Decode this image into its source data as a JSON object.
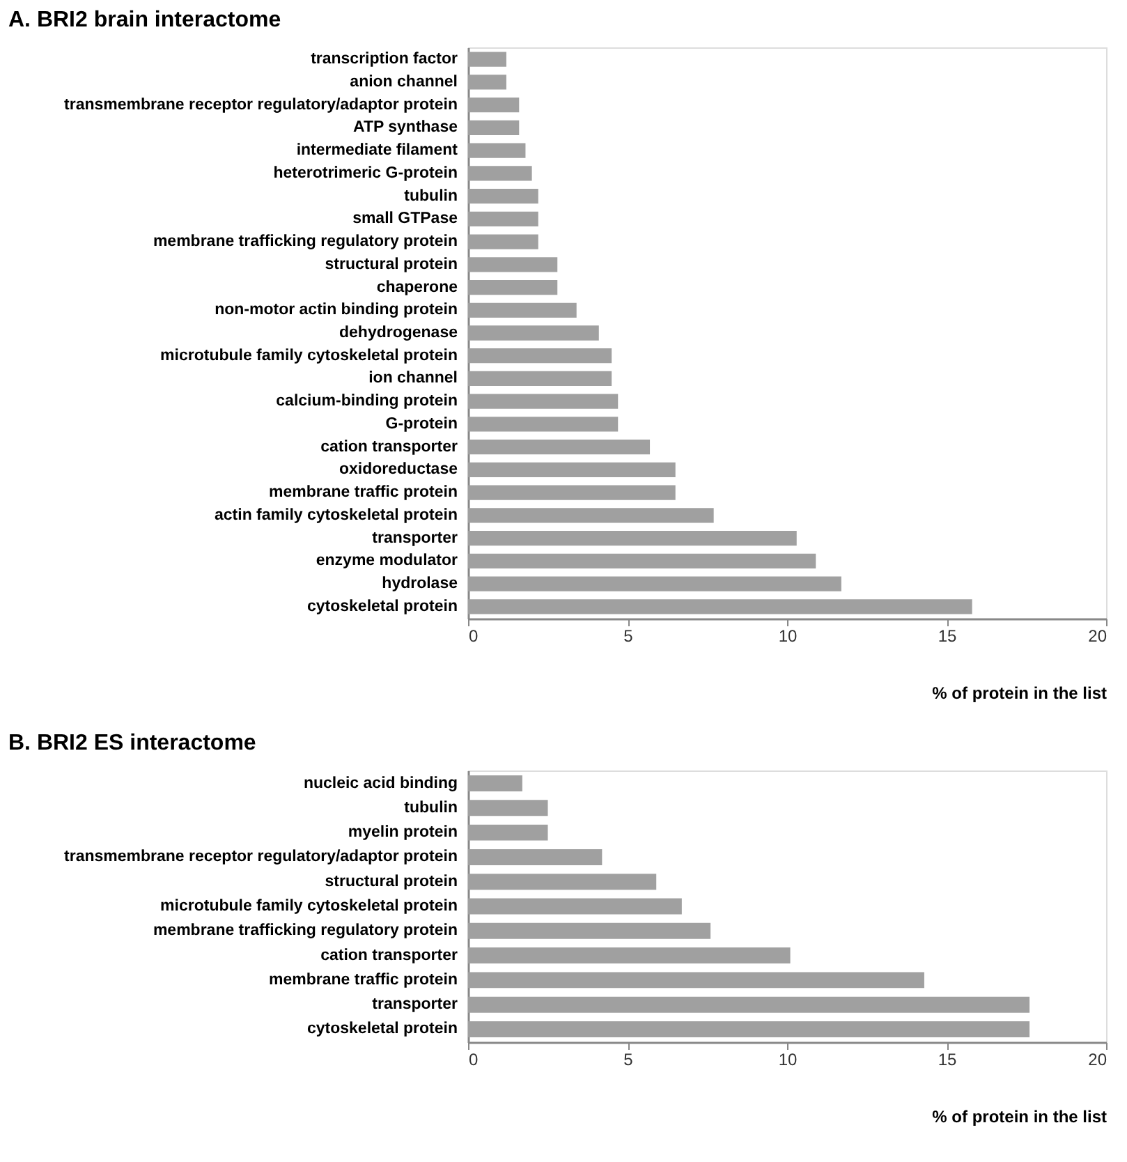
{
  "chart_data": [
    {
      "type": "bar",
      "orientation": "horizontal",
      "title": "A. BRI2 brain interactome",
      "xlabel": "% of protein in the list",
      "categories": [
        "transcription factor",
        "anion channel",
        "transmembrane receptor regulatory/adaptor protein",
        "ATP synthase",
        "intermediate filament",
        "heterotrimeric G-protein",
        "tubulin",
        "small GTPase",
        "membrane trafficking regulatory protein",
        "structural protein",
        "chaperone",
        "non-motor actin binding protein",
        "dehydrogenase",
        "microtubule family cytoskeletal protein",
        "ion channel",
        "calcium-binding protein",
        "G-protein",
        "cation transporter",
        "oxidoreductase",
        "membrane traffic protein",
        "actin family cytoskeletal protein",
        "transporter",
        "enzyme modulator",
        "hydrolase",
        "cytoskeletal protein"
      ],
      "values": [
        1.2,
        1.2,
        1.6,
        1.6,
        1.8,
        2.0,
        2.2,
        2.2,
        2.2,
        2.8,
        2.8,
        3.4,
        4.1,
        4.5,
        4.5,
        4.7,
        4.7,
        5.7,
        6.5,
        6.5,
        7.7,
        10.3,
        10.9,
        11.7,
        15.8
      ],
      "color": "#a0a0a0",
      "xlim": [
        0,
        20
      ],
      "xticks": [
        0,
        5,
        10,
        15,
        20
      ],
      "grid": false
    },
    {
      "type": "bar",
      "orientation": "horizontal",
      "title": "B. BRI2 ES interactome",
      "xlabel": "% of protein in the list",
      "categories": [
        "nucleic acid binding",
        "tubulin",
        "myelin protein",
        "transmembrane receptor regulatory/adaptor protein",
        "structural protein",
        "microtubule family cytoskeletal protein",
        "membrane trafficking regulatory protein",
        "cation transporter",
        "membrane traffic protein",
        "transporter",
        "cytoskeletal protein"
      ],
      "values": [
        1.7,
        2.5,
        2.5,
        4.2,
        5.9,
        6.7,
        7.6,
        10.1,
        14.3,
        17.6,
        17.6
      ],
      "color": "#a0a0a0",
      "xlim": [
        0,
        20
      ],
      "xticks": [
        0,
        5,
        10,
        15,
        20
      ],
      "grid": false
    }
  ]
}
